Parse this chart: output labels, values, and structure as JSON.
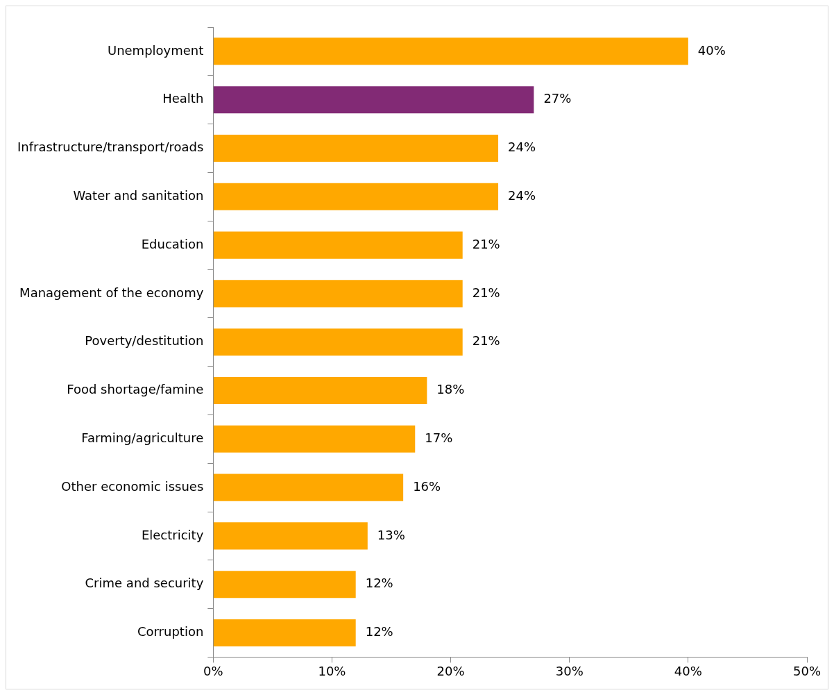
{
  "chart_data": {
    "type": "bar",
    "orientation": "horizontal",
    "categories": [
      "Unemployment",
      "Health",
      "Infrastructure/transport/roads",
      "Water and sanitation",
      "Education",
      "Management of the economy",
      "Poverty/destitution",
      "Food shortage/famine",
      "Farming/agriculture",
      "Other economic issues",
      "Electricity",
      "Crime and security",
      "Corruption"
    ],
    "values": [
      40,
      27,
      24,
      24,
      21,
      21,
      21,
      18,
      17,
      16,
      13,
      12,
      12
    ],
    "value_labels": [
      "40%",
      "27%",
      "24%",
      "24%",
      "21%",
      "21%",
      "21%",
      "18%",
      "17%",
      "16%",
      "13%",
      "12%",
      "12%"
    ],
    "colors": [
      "#ffa800",
      "#822a75",
      "#ffa800",
      "#ffa800",
      "#ffa800",
      "#ffa800",
      "#ffa800",
      "#ffa800",
      "#ffa800",
      "#ffa800",
      "#ffa800",
      "#ffa800",
      "#ffa800"
    ],
    "xlim": [
      0,
      50
    ],
    "xticks": [
      {
        "value": 0,
        "label": "0%"
      },
      {
        "value": 10,
        "label": "10%"
      },
      {
        "value": 20,
        "label": "20%"
      },
      {
        "value": 30,
        "label": "30%"
      },
      {
        "value": 40,
        "label": "40%"
      },
      {
        "value": 50,
        "label": "50%"
      }
    ],
    "grid": false,
    "legend": false
  }
}
